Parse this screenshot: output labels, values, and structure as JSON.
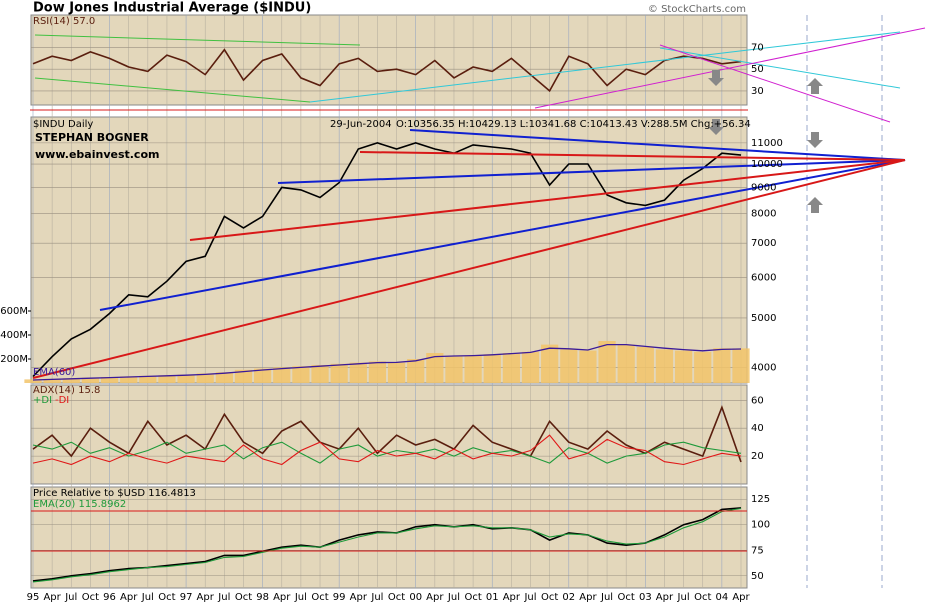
{
  "header": {
    "title": "Dow Jones Industrial Average ($INDU)",
    "copyright": "© StockCharts.com"
  },
  "chart_data": [
    {
      "type": "line",
      "ylim": [
        17,
        100
      ],
      "yticks": [
        30,
        50,
        70
      ],
      "grid": true,
      "series": [
        {
          "name": "RSI(14) 57.0",
          "color": "#5a1e0e",
          "values": [
            55,
            62,
            58,
            66,
            60,
            52,
            48,
            63,
            57,
            45,
            68,
            40,
            58,
            64,
            42,
            35,
            55,
            60,
            48,
            50,
            45,
            58,
            42,
            52,
            48,
            60,
            45,
            30,
            62,
            55,
            35,
            50,
            45,
            58,
            62,
            60,
            55,
            57
          ]
        }
      ]
    },
    {
      "type": "line",
      "log_scale": true,
      "date": "29-Jun-2004",
      "quote": "O:10356.35 H:10429.13 L:10341.68 C:10413.43 V:288.5M Chg:+56.34",
      "annotations": [
        "STEPHAN BOGNER",
        "www.ebainvest.com"
      ],
      "ylim": [
        3730,
        12360
      ],
      "yticks": [
        4000,
        5000,
        6000,
        7000,
        8000,
        9000,
        10000,
        11000
      ],
      "grid": true,
      "series": [
        {
          "name": "$INDU Daily",
          "color": "#000000",
          "values": [
            3840,
            4200,
            4550,
            4750,
            5100,
            5550,
            5500,
            5900,
            6450,
            6600,
            7900,
            7500,
            7900,
            9000,
            8900,
            8600,
            9200,
            10700,
            11000,
            10700,
            11000,
            10700,
            10500,
            10900,
            10800,
            10700,
            10500,
            9100,
            10000,
            10000,
            8700,
            8400,
            8300,
            8500,
            9300,
            9800,
            10500,
            10413
          ]
        }
      ],
      "volume": {
        "ylim": [
          0,
          2217
        ],
        "yticks": [
          {
            "value": 200,
            "label": "200M"
          },
          {
            "value": 400,
            "label": "400M"
          },
          {
            "value": 600,
            "label": "600M"
          }
        ],
        "color": "#f2c46a",
        "values": [
          30,
          35,
          40,
          45,
          50,
          55,
          60,
          65,
          70,
          80,
          90,
          110,
          120,
          130,
          140,
          150,
          160,
          170,
          180,
          170,
          200,
          250,
          220,
          230,
          240,
          250,
          260,
          320,
          280,
          270,
          350,
          320,
          300,
          280,
          270,
          260,
          290,
          288.5
        ],
        "ema": {
          "name": "EMA(60)",
          "color": "#3a1a9a",
          "values": [
            25,
            30,
            35,
            40,
            45,
            50,
            55,
            60,
            65,
            72,
            82,
            95,
            108,
            120,
            130,
            140,
            150,
            160,
            170,
            172,
            185,
            220,
            225,
            228,
            235,
            245,
            255,
            290,
            285,
            275,
            320,
            320,
            305,
            290,
            278,
            268,
            280,
            283
          ]
        }
      }
    },
    {
      "type": "line",
      "ylim": [
        0,
        71
      ],
      "yticks": [
        20,
        40,
        60
      ],
      "grid": true,
      "series": [
        {
          "name": "ADX(14) 15.8",
          "color": "#5a1e0e",
          "values": [
            25,
            35,
            20,
            40,
            30,
            22,
            45,
            28,
            35,
            25,
            50,
            30,
            22,
            38,
            45,
            30,
            25,
            40,
            22,
            35,
            28,
            32,
            25,
            42,
            30,
            25,
            20,
            45,
            30,
            25,
            38,
            28,
            22,
            30,
            25,
            20,
            55,
            15.8
          ]
        },
        {
          "name": "+DI",
          "color": "#1e9a3a",
          "values": [
            28,
            25,
            30,
            22,
            26,
            20,
            24,
            30,
            22,
            25,
            28,
            18,
            26,
            30,
            22,
            15,
            25,
            28,
            20,
            24,
            22,
            25,
            20,
            26,
            22,
            24,
            20,
            15,
            26,
            22,
            15,
            20,
            22,
            28,
            30,
            26,
            24,
            22
          ]
        },
        {
          "name": "-DI",
          "color": "#e01818",
          "values": [
            15,
            18,
            14,
            20,
            16,
            22,
            18,
            15,
            20,
            18,
            16,
            28,
            18,
            14,
            24,
            30,
            18,
            16,
            24,
            20,
            22,
            18,
            25,
            18,
            22,
            20,
            24,
            35,
            18,
            22,
            32,
            26,
            24,
            16,
            14,
            18,
            22,
            20
          ]
        }
      ]
    },
    {
      "type": "line",
      "ylim": [
        38,
        137
      ],
      "yticks": [
        50,
        75,
        100,
        125
      ],
      "grid": true,
      "categories": [
        "95",
        "Apr",
        "Jul",
        "Oct",
        "96",
        "Apr",
        "Jul",
        "Oct",
        "97",
        "Apr",
        "Jul",
        "Oct",
        "98",
        "Apr",
        "Jul",
        "Oct",
        "99",
        "Apr",
        "Jul",
        "Oct",
        "00",
        "Apr",
        "Jul",
        "Oct",
        "01",
        "Apr",
        "Jul",
        "Oct",
        "02",
        "Apr",
        "Jul",
        "Oct",
        "03",
        "Apr",
        "Jul",
        "Oct",
        "04",
        "Apr"
      ],
      "series": [
        {
          "name": "Price Relative to $USD 116.4813",
          "color": "#000000",
          "values": [
            45,
            47,
            50,
            52,
            55,
            57,
            58,
            60,
            62,
            64,
            70,
            70,
            74,
            78,
            80,
            78,
            85,
            90,
            93,
            92,
            98,
            100,
            98,
            100,
            96,
            97,
            95,
            85,
            92,
            90,
            82,
            80,
            82,
            90,
            100,
            105,
            115,
            116.5
          ]
        },
        {
          "name": "EMA(20) 115.8962",
          "color": "#1e9a3a",
          "values": [
            44,
            46,
            49,
            51,
            54,
            56,
            58,
            59,
            61,
            63,
            68,
            69,
            73,
            77,
            79,
            78,
            83,
            88,
            92,
            92,
            96,
            99,
            98,
            99,
            97,
            97,
            95,
            88,
            91,
            90,
            84,
            81,
            82,
            88,
            97,
            103,
            113,
            115.9
          ]
        }
      ]
    }
  ]
}
